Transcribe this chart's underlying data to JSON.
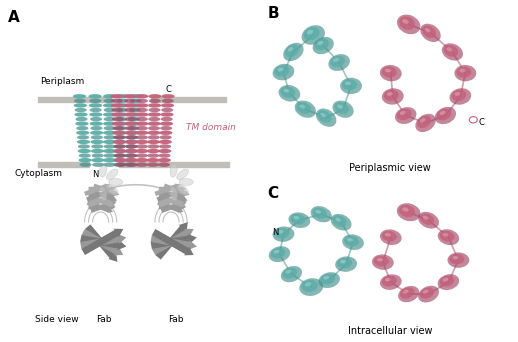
{
  "panel_A_label": "A",
  "panel_B_label": "B",
  "panel_C_label": "C",
  "teal": "#5BADA8",
  "teal_light": "#7DCCC7",
  "teal_dark": "#3D8C87",
  "pink": "#C4607A",
  "pink_light": "#D98090",
  "pink_dark": "#A04060",
  "gray_fab": "#BBBBBB",
  "gray_fab_dark": "#888888",
  "gray_fab_mid": "#999999",
  "gray_bar": "#C0BEB8",
  "white": "#FFFFFF",
  "black": "#000000",
  "tm_label_color": "#C4607A",
  "label_periplasm": "Periplasm",
  "label_cytoplasm": "Cytoplasm",
  "label_tm": "TM domain",
  "label_side_view": "Side view",
  "label_fab": "Fab",
  "label_periplasmic_view": "Periplasmic view",
  "label_intracellular_view": "Intracellular view"
}
